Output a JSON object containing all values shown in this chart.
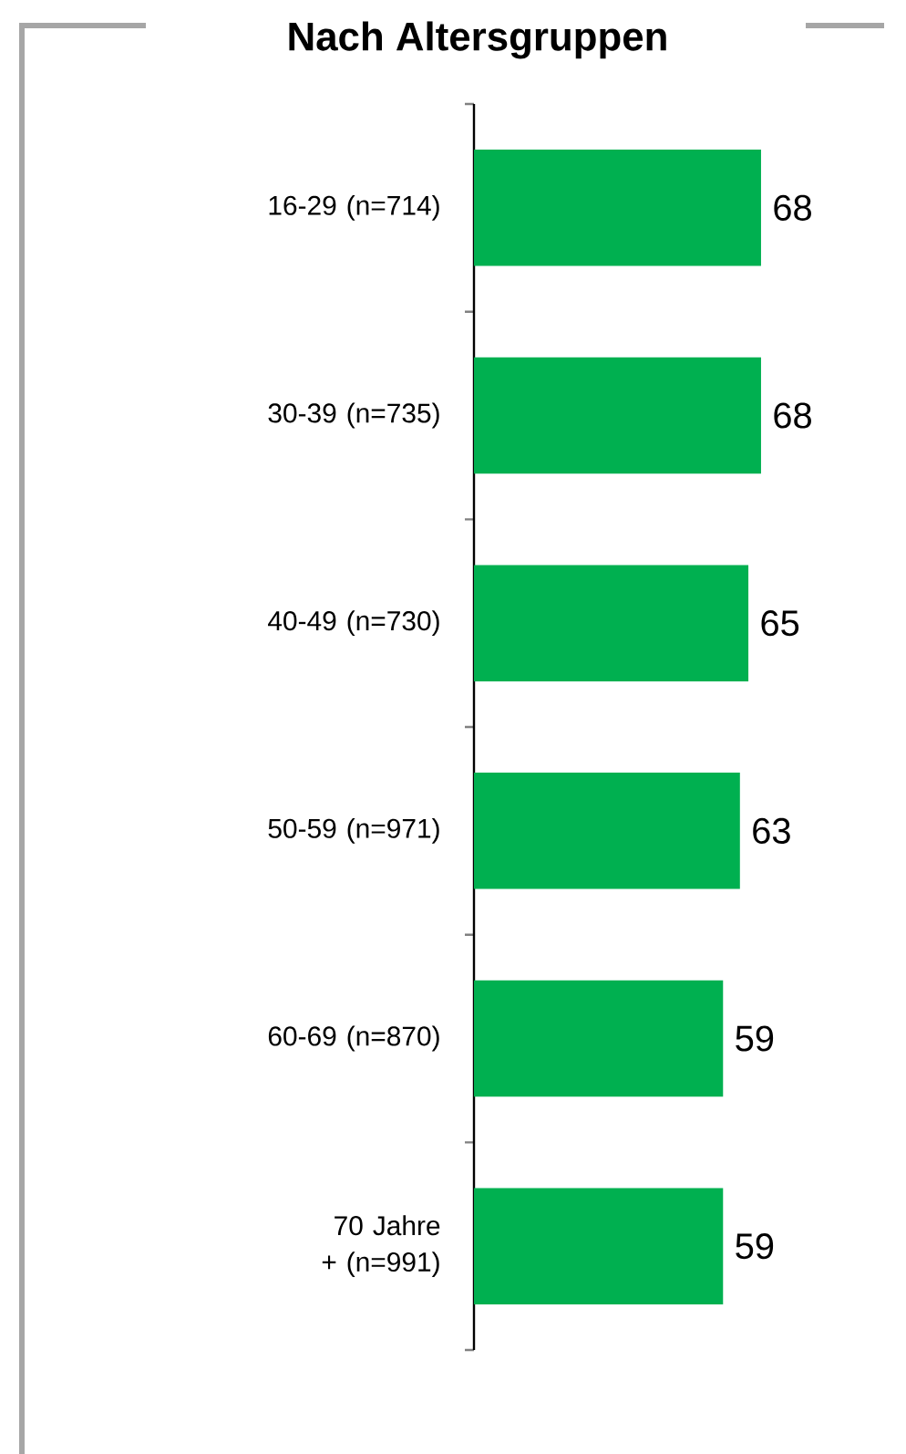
{
  "chart_data": {
    "type": "bar",
    "orientation": "horizontal",
    "title": "Nach Altersgruppen",
    "categories": [
      "16-29 (n=714)",
      "30-39 (n=735)",
      "40-49 (n=730)",
      "50-59 (n=971)",
      "60-69 (n=870)",
      "70 Jahre + (n=991)"
    ],
    "values": [
      68,
      68,
      65,
      63,
      59,
      59
    ],
    "color": "#00b050",
    "data_labels": true
  }
}
